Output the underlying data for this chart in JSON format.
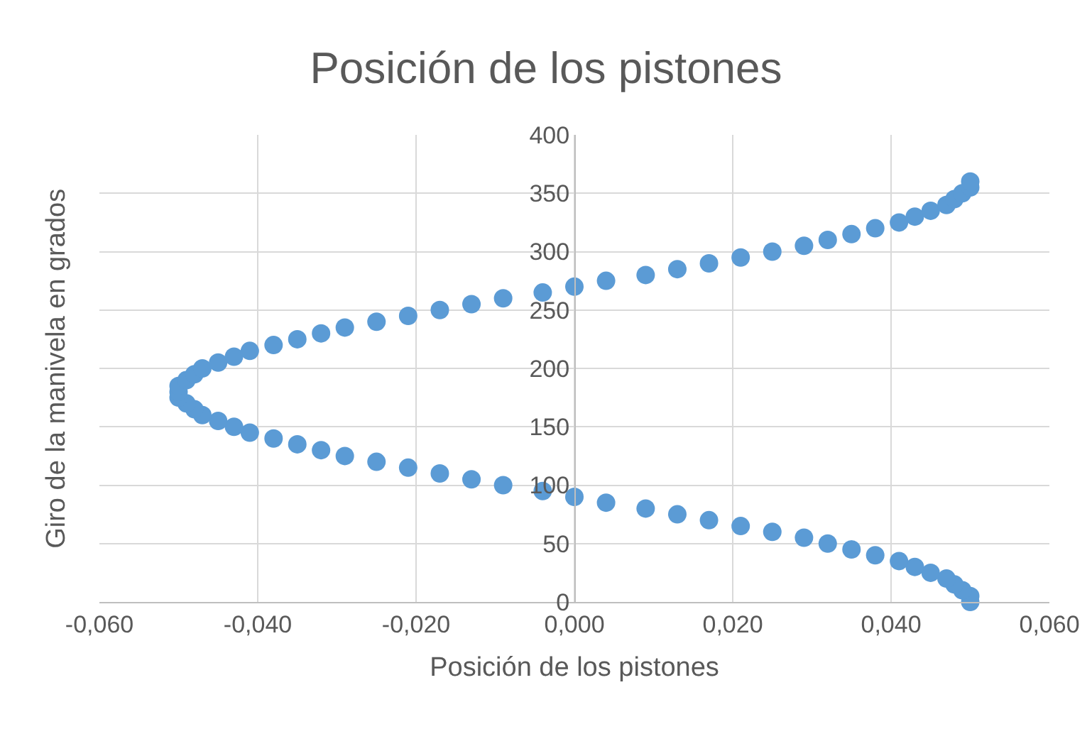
{
  "chart_data": {
    "type": "scatter",
    "title": "Posición de los pistones",
    "xlabel": "Posición de los pistones",
    "ylabel": "Giro de la manivela en grados",
    "x": [
      0.05,
      0.05,
      0.049,
      0.048,
      0.047,
      0.045,
      0.043,
      0.041,
      0.038,
      0.035,
      0.032,
      0.029,
      0.025,
      0.021,
      0.017,
      0.013,
      0.009,
      0.004,
      0.0,
      -0.004,
      -0.009,
      -0.013,
      -0.017,
      -0.021,
      -0.025,
      -0.029,
      -0.032,
      -0.035,
      -0.038,
      -0.041,
      -0.043,
      -0.045,
      -0.047,
      -0.048,
      -0.049,
      -0.05,
      -0.05,
      -0.05,
      -0.049,
      -0.048,
      -0.047,
      -0.045,
      -0.043,
      -0.041,
      -0.038,
      -0.035,
      -0.032,
      -0.029,
      -0.025,
      -0.021,
      -0.017,
      -0.013,
      -0.009,
      -0.004,
      0.0,
      0.004,
      0.009,
      0.013,
      0.017,
      0.021,
      0.025,
      0.029,
      0.032,
      0.035,
      0.038,
      0.041,
      0.043,
      0.045,
      0.047,
      0.048,
      0.049,
      0.05,
      0.05
    ],
    "series": [
      {
        "color": "#5b9bd5",
        "values": [
          0,
          5,
          10,
          15,
          20,
          25,
          30,
          35,
          40,
          45,
          50,
          55,
          60,
          65,
          70,
          75,
          80,
          85,
          90,
          95,
          100,
          105,
          110,
          115,
          120,
          125,
          130,
          135,
          140,
          145,
          150,
          155,
          160,
          165,
          170,
          175,
          180,
          185,
          190,
          195,
          200,
          205,
          210,
          215,
          220,
          225,
          230,
          235,
          240,
          245,
          250,
          255,
          260,
          265,
          270,
          275,
          280,
          285,
          290,
          295,
          300,
          305,
          310,
          315,
          320,
          325,
          330,
          335,
          340,
          345,
          350,
          355,
          360
        ]
      }
    ],
    "xlim": [
      -0.06,
      0.06
    ],
    "xticks": [
      {
        "value": -0.06,
        "label": "-0,060"
      },
      {
        "value": -0.04,
        "label": "-0,040"
      },
      {
        "value": -0.02,
        "label": "-0,020"
      },
      {
        "value": 0,
        "label": "0,000"
      },
      {
        "value": 0.02,
        "label": "0,020"
      },
      {
        "value": 0.04,
        "label": "0,040"
      },
      {
        "value": 0.06,
        "label": "0,060"
      }
    ],
    "ylim": [
      0,
      400
    ],
    "yticks": [
      0,
      50,
      100,
      150,
      200,
      250,
      300,
      350,
      400
    ],
    "grid": true,
    "marker": "circle"
  }
}
